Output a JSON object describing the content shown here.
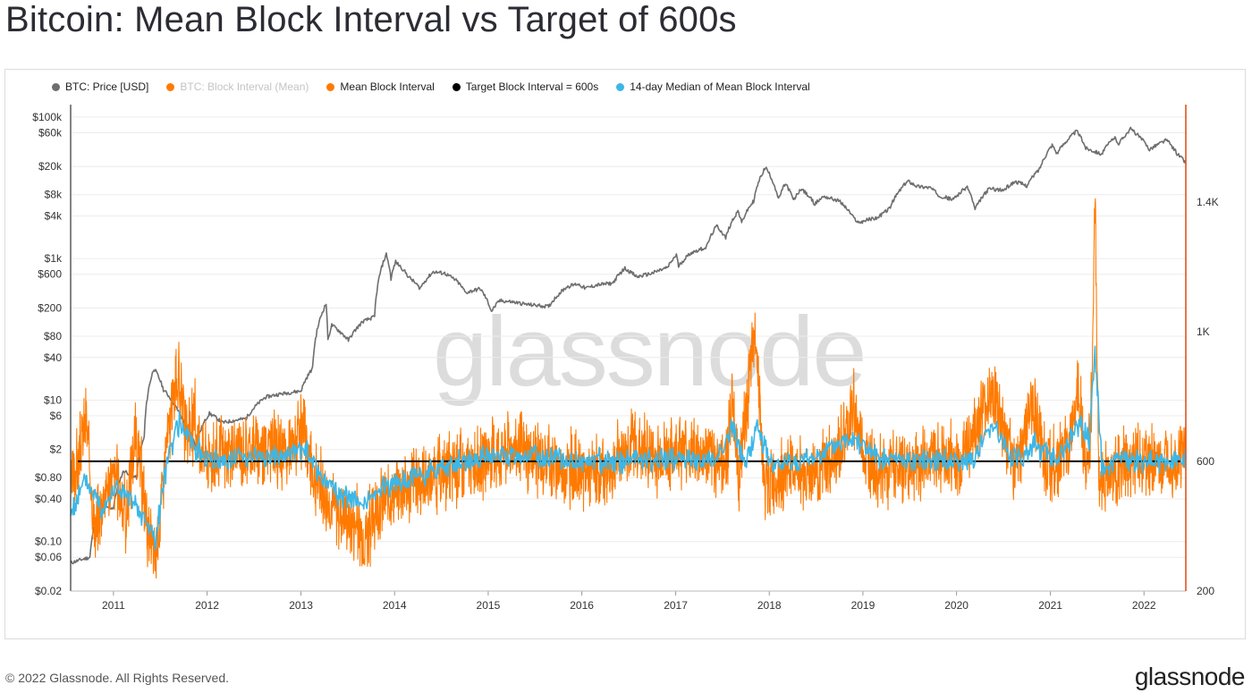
{
  "header": {
    "title": "Bitcoin: Mean Block Interval vs Target of 600s"
  },
  "footer": {
    "copyright": "© 2022 Glassnode. All Rights Reserved.",
    "brand": "glassnode"
  },
  "watermark": "glassnode",
  "colors": {
    "price": "#6e6e6e",
    "block_interval_raw": "#f7931a",
    "mean_block_interval": "#ff7a00",
    "target": "#000000",
    "median": "#3bb7e8",
    "right_axis": "#e0541e"
  },
  "chart_data": {
    "type": "line",
    "legend": [
      {
        "label": "BTC: Price [USD]",
        "color": "#6e6e6e",
        "muted": false
      },
      {
        "label": "BTC: Block Interval (Mean)",
        "color": "#f7931a",
        "muted": true
      },
      {
        "label": "Mean Block Interval",
        "color": "#ff7a00",
        "muted": false
      },
      {
        "label": "Target Block Interval = 600s",
        "color": "#000000",
        "muted": false
      },
      {
        "label": "14-day Median of Mean Block Interval",
        "color": "#3bb7e8",
        "muted": false
      }
    ],
    "legend_position": "top-left",
    "grid": true,
    "x_axis": {
      "type": "date",
      "range": [
        "2010-07-18",
        "2022-06-13"
      ],
      "ticks": [
        "2011",
        "2012",
        "2013",
        "2014",
        "2015",
        "2016",
        "2017",
        "2018",
        "2019",
        "2020",
        "2021",
        "2022"
      ]
    },
    "left_axis": {
      "label": "",
      "scale": "log",
      "range": [
        0.02,
        150000
      ],
      "ticks": [
        {
          "value": 100000,
          "label": "$100k"
        },
        {
          "value": 60000,
          "label": "$60k"
        },
        {
          "value": 20000,
          "label": "$20k"
        },
        {
          "value": 8000,
          "label": "$8k"
        },
        {
          "value": 4000,
          "label": "$4k"
        },
        {
          "value": 1000,
          "label": "$1k"
        },
        {
          "value": 600,
          "label": "$600"
        },
        {
          "value": 200,
          "label": "$200"
        },
        {
          "value": 80,
          "label": "$80"
        },
        {
          "value": 40,
          "label": "$40"
        },
        {
          "value": 10,
          "label": "$10"
        },
        {
          "value": 6,
          "label": "$6"
        },
        {
          "value": 2,
          "label": "$2"
        },
        {
          "value": 0.8,
          "label": "$0.80"
        },
        {
          "value": 0.4,
          "label": "$0.40"
        },
        {
          "value": 0.1,
          "label": "$0.10"
        },
        {
          "value": 0.06,
          "label": "$0.06"
        },
        {
          "value": 0.02,
          "label": "$0.02"
        }
      ]
    },
    "right_axis": {
      "label": "",
      "scale": "linear",
      "range": [
        200,
        1700
      ],
      "ticks": [
        {
          "value": 1400,
          "label": "1.4K"
        },
        {
          "value": 1000,
          "label": "1K"
        },
        {
          "value": 600,
          "label": "600"
        },
        {
          "value": 200,
          "label": "200"
        }
      ]
    },
    "target_block_interval": 600,
    "series": [
      {
        "name": "BTC: Price [USD]",
        "axis": "left",
        "points": [
          [
            "2010-07-18",
            0.05
          ],
          [
            "2010-10-01",
            0.06
          ],
          [
            "2010-11-10",
            0.3
          ],
          [
            "2011-01-01",
            0.3
          ],
          [
            "2011-02-10",
            1.0
          ],
          [
            "2011-04-01",
            0.8
          ],
          [
            "2011-05-01",
            3.0
          ],
          [
            "2011-06-08",
            28
          ],
          [
            "2011-07-15",
            14
          ],
          [
            "2011-09-01",
            8
          ],
          [
            "2011-10-01",
            5
          ],
          [
            "2011-11-18",
            2.2
          ],
          [
            "2012-01-10",
            6.5
          ],
          [
            "2012-03-01",
            4.8
          ],
          [
            "2012-06-01",
            5.5
          ],
          [
            "2012-08-15",
            11
          ],
          [
            "2012-10-01",
            12
          ],
          [
            "2012-12-01",
            13
          ],
          [
            "2013-01-01",
            13.5
          ],
          [
            "2013-02-15",
            28
          ],
          [
            "2013-04-09",
            230
          ],
          [
            "2013-04-16",
            68
          ],
          [
            "2013-05-01",
            115
          ],
          [
            "2013-07-05",
            70
          ],
          [
            "2013-09-01",
            130
          ],
          [
            "2013-10-15",
            150
          ],
          [
            "2013-11-30",
            1150
          ],
          [
            "2013-12-18",
            520
          ],
          [
            "2014-01-05",
            900
          ],
          [
            "2014-02-25",
            550
          ],
          [
            "2014-04-10",
            380
          ],
          [
            "2014-06-01",
            650
          ],
          [
            "2014-07-15",
            620
          ],
          [
            "2014-09-01",
            480
          ],
          [
            "2014-10-05",
            330
          ],
          [
            "2014-12-01",
            375
          ],
          [
            "2015-01-14",
            180
          ],
          [
            "2015-02-15",
            255
          ],
          [
            "2015-04-01",
            245
          ],
          [
            "2015-06-01",
            225
          ],
          [
            "2015-08-25",
            210
          ],
          [
            "2015-11-04",
            400
          ],
          [
            "2015-12-15",
            440
          ],
          [
            "2016-01-15",
            380
          ],
          [
            "2016-03-01",
            425
          ],
          [
            "2016-05-01",
            450
          ],
          [
            "2016-06-17",
            730
          ],
          [
            "2016-08-02",
            550
          ],
          [
            "2016-10-01",
            620
          ],
          [
            "2016-12-01",
            750
          ],
          [
            "2017-01-04",
            1130
          ],
          [
            "2017-01-12",
            780
          ],
          [
            "2017-03-01",
            1200
          ],
          [
            "2017-05-01",
            1450
          ],
          [
            "2017-06-10",
            2900
          ],
          [
            "2017-07-15",
            1950
          ],
          [
            "2017-09-01",
            4700
          ],
          [
            "2017-09-15",
            3200
          ],
          [
            "2017-11-01",
            6500
          ],
          [
            "2017-12-17",
            19500
          ],
          [
            "2018-02-06",
            6800
          ],
          [
            "2018-03-05",
            11500
          ],
          [
            "2018-04-06",
            6600
          ],
          [
            "2018-05-05",
            9700
          ],
          [
            "2018-06-28",
            5900
          ],
          [
            "2018-08-01",
            7600
          ],
          [
            "2018-10-01",
            6500
          ],
          [
            "2018-11-25",
            3800
          ],
          [
            "2018-12-15",
            3200
          ],
          [
            "2019-01-20",
            3550
          ],
          [
            "2019-03-01",
            3800
          ],
          [
            "2019-04-15",
            5100
          ],
          [
            "2019-06-26",
            12500
          ],
          [
            "2019-08-01",
            10500
          ],
          [
            "2019-09-20",
            10100
          ],
          [
            "2019-10-25",
            7800
          ],
          [
            "2019-12-18",
            6800
          ],
          [
            "2020-02-12",
            10300
          ],
          [
            "2020-03-13",
            4900
          ],
          [
            "2020-05-08",
            9800
          ],
          [
            "2020-07-01",
            9200
          ],
          [
            "2020-08-17",
            12300
          ],
          [
            "2020-10-01",
            10700
          ],
          [
            "2020-11-20",
            18500
          ],
          [
            "2021-01-08",
            40500
          ],
          [
            "2021-01-27",
            30500
          ],
          [
            "2021-04-14",
            63500
          ],
          [
            "2021-05-19",
            36500
          ],
          [
            "2021-07-20",
            30000
          ],
          [
            "2021-09-07",
            51500
          ],
          [
            "2021-09-25",
            42000
          ],
          [
            "2021-11-10",
            68000
          ],
          [
            "2022-01-22",
            35000
          ],
          [
            "2022-03-29",
            47500
          ],
          [
            "2022-05-10",
            30500
          ],
          [
            "2022-06-13",
            22500
          ]
        ]
      },
      {
        "name": "Mean Block Interval",
        "axis": "right",
        "points": [
          [
            "2010-07-18",
            510
          ],
          [
            "2010-08-20",
            620
          ],
          [
            "2010-09-16",
            730
          ],
          [
            "2010-10-20",
            380
          ],
          [
            "2010-12-01",
            520
          ],
          [
            "2011-01-10",
            560
          ],
          [
            "2011-02-20",
            420
          ],
          [
            "2011-03-25",
            680
          ],
          [
            "2011-04-20",
            560
          ],
          [
            "2011-05-20",
            360
          ],
          [
            "2011-06-15",
            300
          ],
          [
            "2011-07-25",
            640
          ],
          [
            "2011-09-08",
            870
          ],
          [
            "2011-10-10",
            680
          ],
          [
            "2011-11-15",
            720
          ],
          [
            "2011-12-20",
            620
          ],
          [
            "2012-03-01",
            610
          ],
          [
            "2012-06-01",
            640
          ],
          [
            "2012-08-15",
            650
          ],
          [
            "2012-11-01",
            610
          ],
          [
            "2013-01-10",
            690
          ],
          [
            "2013-02-20",
            560
          ],
          [
            "2013-04-20",
            480
          ],
          [
            "2013-07-01",
            420
          ],
          [
            "2013-09-15",
            380
          ],
          [
            "2013-11-01",
            470
          ],
          [
            "2014-01-10",
            510
          ],
          [
            "2014-04-01",
            540
          ],
          [
            "2014-07-01",
            560
          ],
          [
            "2014-10-01",
            580
          ],
          [
            "2015-01-10",
            620
          ],
          [
            "2015-04-10",
            640
          ],
          [
            "2015-07-10",
            610
          ],
          [
            "2015-10-15",
            580
          ],
          [
            "2016-01-15",
            560
          ],
          [
            "2016-04-15",
            570
          ],
          [
            "2016-07-10",
            660
          ],
          [
            "2016-10-10",
            610
          ],
          [
            "2017-01-15",
            640
          ],
          [
            "2017-04-10",
            620
          ],
          [
            "2017-07-15",
            600
          ],
          [
            "2017-08-12",
            790
          ],
          [
            "2017-09-05",
            560
          ],
          [
            "2017-11-10",
            1020
          ],
          [
            "2017-12-10",
            520
          ],
          [
            "2018-03-10",
            580
          ],
          [
            "2018-06-10",
            570
          ],
          [
            "2018-09-10",
            590
          ],
          [
            "2018-11-25",
            760
          ],
          [
            "2019-01-10",
            600
          ],
          [
            "2019-04-10",
            570
          ],
          [
            "2019-07-10",
            590
          ],
          [
            "2019-10-10",
            620
          ],
          [
            "2020-01-10",
            590
          ],
          [
            "2020-03-25",
            720
          ],
          [
            "2020-05-20",
            820
          ],
          [
            "2020-08-10",
            580
          ],
          [
            "2020-10-25",
            780
          ],
          [
            "2020-12-15",
            590
          ],
          [
            "2021-03-10",
            620
          ],
          [
            "2021-04-20",
            860
          ],
          [
            "2021-05-20",
            550
          ],
          [
            "2021-06-10",
            760
          ],
          [
            "2021-06-24",
            1390
          ],
          [
            "2021-07-10",
            520
          ],
          [
            "2021-09-10",
            570
          ],
          [
            "2021-12-10",
            600
          ],
          [
            "2022-03-10",
            590
          ],
          [
            "2022-06-13",
            620
          ]
        ]
      },
      {
        "name": "14-day Median of Mean Block Interval",
        "axis": "right",
        "points": [
          [
            "2010-07-18",
            440
          ],
          [
            "2010-09-15",
            540
          ],
          [
            "2010-11-15",
            460
          ],
          [
            "2011-01-15",
            520
          ],
          [
            "2011-03-15",
            470
          ],
          [
            "2011-05-15",
            400
          ],
          [
            "2011-06-15",
            360
          ],
          [
            "2011-08-01",
            620
          ],
          [
            "2011-09-15",
            720
          ],
          [
            "2011-11-15",
            640
          ],
          [
            "2012-02-01",
            600
          ],
          [
            "2012-06-01",
            620
          ],
          [
            "2012-10-01",
            610
          ],
          [
            "2013-01-15",
            640
          ],
          [
            "2013-03-15",
            560
          ],
          [
            "2013-06-01",
            500
          ],
          [
            "2013-09-15",
            470
          ],
          [
            "2013-12-01",
            520
          ],
          [
            "2014-04-01",
            560
          ],
          [
            "2014-08-01",
            590
          ],
          [
            "2014-12-01",
            610
          ],
          [
            "2015-06-01",
            620
          ],
          [
            "2015-12-01",
            600
          ],
          [
            "2016-06-01",
            600
          ],
          [
            "2016-12-01",
            610
          ],
          [
            "2017-06-01",
            600
          ],
          [
            "2017-08-12",
            700
          ],
          [
            "2017-10-01",
            590
          ],
          [
            "2017-11-15",
            710
          ],
          [
            "2018-01-15",
            580
          ],
          [
            "2018-06-01",
            600
          ],
          [
            "2018-11-25",
            680
          ],
          [
            "2019-03-01",
            600
          ],
          [
            "2019-09-01",
            610
          ],
          [
            "2020-03-01",
            600
          ],
          [
            "2020-05-25",
            720
          ],
          [
            "2020-08-01",
            600
          ],
          [
            "2020-11-01",
            650
          ],
          [
            "2021-02-01",
            600
          ],
          [
            "2021-04-25",
            720
          ],
          [
            "2021-06-01",
            660
          ],
          [
            "2021-06-24",
            940
          ],
          [
            "2021-07-20",
            580
          ],
          [
            "2021-10-01",
            600
          ],
          [
            "2022-01-01",
            600
          ],
          [
            "2022-06-13",
            610
          ]
        ]
      }
    ]
  }
}
